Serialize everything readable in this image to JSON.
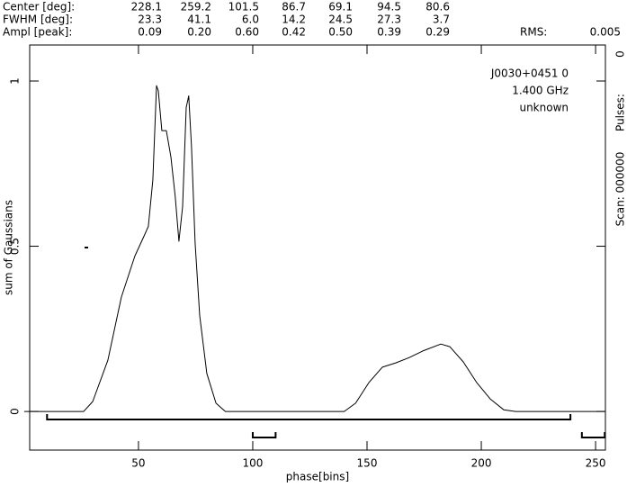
{
  "header": {
    "rows": [
      {
        "label": "Center [deg]:",
        "values": [
          "228.1",
          "259.2",
          "101.5",
          "86.7",
          "69.1",
          "94.5",
          "80.6"
        ]
      },
      {
        "label": "FWHM  [deg]:",
        "values": [
          "23.3",
          "41.1",
          "6.0",
          "14.2",
          "24.5",
          "27.3",
          "3.7"
        ]
      },
      {
        "label": "Ampl  [peak]:",
        "values": [
          "0.09",
          "0.20",
          "0.60",
          "0.42",
          "0.50",
          "0.39",
          "0.29"
        ]
      }
    ],
    "rms_label": "RMS:",
    "rms": "0.005"
  },
  "side": {
    "pulses_label": "Pulses:",
    "pulses": "0",
    "scan": "Scan: 000000"
  },
  "chart_data": {
    "type": "line",
    "xlabel": "phase[bins]",
    "ylabel": "sum of Gaussians",
    "annotations": [
      "J0030+0451 0",
      "1.400 GHz",
      "unknown"
    ],
    "color": "#000000",
    "x": [
      0,
      26,
      30,
      36.6,
      42.5,
      48.4,
      52.4,
      54.3,
      56.3,
      57.9,
      58.7,
      60.2,
      62.2,
      64.2,
      66.1,
      67.7,
      69.3,
      70.9,
      72,
      73.2,
      74.8,
      76.8,
      79.9,
      83.9,
      88,
      140,
      145,
      150.8,
      156.7,
      162.6,
      168.5,
      174.4,
      182.3,
      186.2,
      192.1,
      198,
      203.9,
      209.8,
      215,
      254
    ],
    "values": [
      0,
      0,
      0.03,
      0.155,
      0.346,
      0.47,
      0.53,
      0.56,
      0.7,
      0.986,
      0.97,
      0.85,
      0.85,
      0.77,
      0.65,
      0.515,
      0.62,
      0.92,
      0.955,
      0.8,
      0.51,
      0.29,
      0.115,
      0.025,
      0,
      0,
      0.025,
      0.087,
      0.134,
      0.147,
      0.163,
      0.183,
      0.204,
      0.196,
      0.15,
      0.087,
      0.038,
      0.005,
      0,
      0
    ],
    "windows": [
      [
        10,
        239
      ],
      [
        100,
        110
      ],
      [
        244,
        254
      ]
    ],
    "xlim": [
      2.4,
      254.3
    ],
    "ylim": [
      -0.117,
      1.109
    ],
    "xticks": [
      50,
      100,
      150,
      200,
      250
    ],
    "yticks": [
      0,
      0.5,
      1
    ]
  }
}
